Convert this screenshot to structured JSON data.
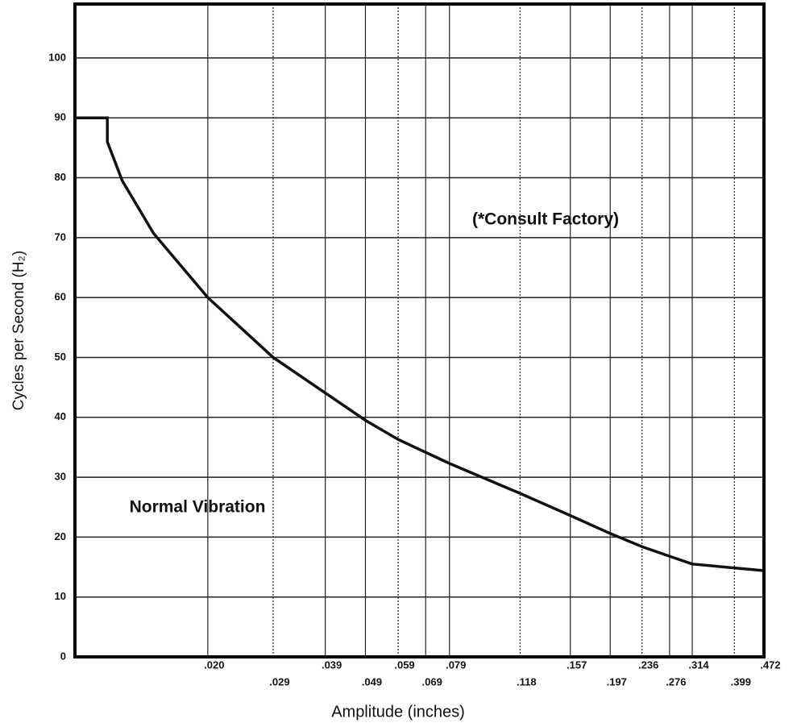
{
  "chart_data": {
    "type": "line",
    "xlabel": "Amplitude (inches)",
    "ylabel": "Cycles per Second (H₂)",
    "annotations": [
      "(*Consult Factory)",
      "Normal Vibration"
    ],
    "xscale": "log",
    "xlim": [
      0.0094,
      0.472
    ],
    "ylim": [
      0,
      109
    ],
    "xticks": [
      {
        "value": 0.02,
        "label": ".020"
      },
      {
        "value": 0.029,
        "label": ".029"
      },
      {
        "value": 0.039,
        "label": ".039"
      },
      {
        "value": 0.049,
        "label": ".049"
      },
      {
        "value": 0.059,
        "label": ".059"
      },
      {
        "value": 0.069,
        "label": ".069"
      },
      {
        "value": 0.079,
        "label": ".079"
      },
      {
        "value": 0.118,
        "label": ".118"
      },
      {
        "value": 0.157,
        "label": ".157"
      },
      {
        "value": 0.197,
        "label": ".197"
      },
      {
        "value": 0.236,
        "label": ".236"
      },
      {
        "value": 0.276,
        "label": ".276"
      },
      {
        "value": 0.314,
        "label": ".314"
      },
      {
        "value": 0.399,
        "label": ".399"
      },
      {
        "value": 0.472,
        "label": ".472"
      }
    ],
    "yticks": [
      0,
      10,
      20,
      30,
      40,
      50,
      60,
      70,
      80,
      90,
      100
    ],
    "grid": true,
    "series": [
      {
        "color": "#111111",
        "x": [
          0.0094,
          0.0113,
          0.0113,
          0.0123,
          0.0147,
          0.02,
          0.029,
          0.049,
          0.059,
          0.079,
          0.118,
          0.157,
          0.197,
          0.236,
          0.276,
          0.314,
          0.472
        ],
        "values": [
          90,
          90,
          86,
          79.5,
          70.7,
          60,
          50,
          39.5,
          36.3,
          32.3,
          27.3,
          23.6,
          20.6,
          18.4,
          16.8,
          15.5,
          14.4
        ]
      }
    ]
  }
}
